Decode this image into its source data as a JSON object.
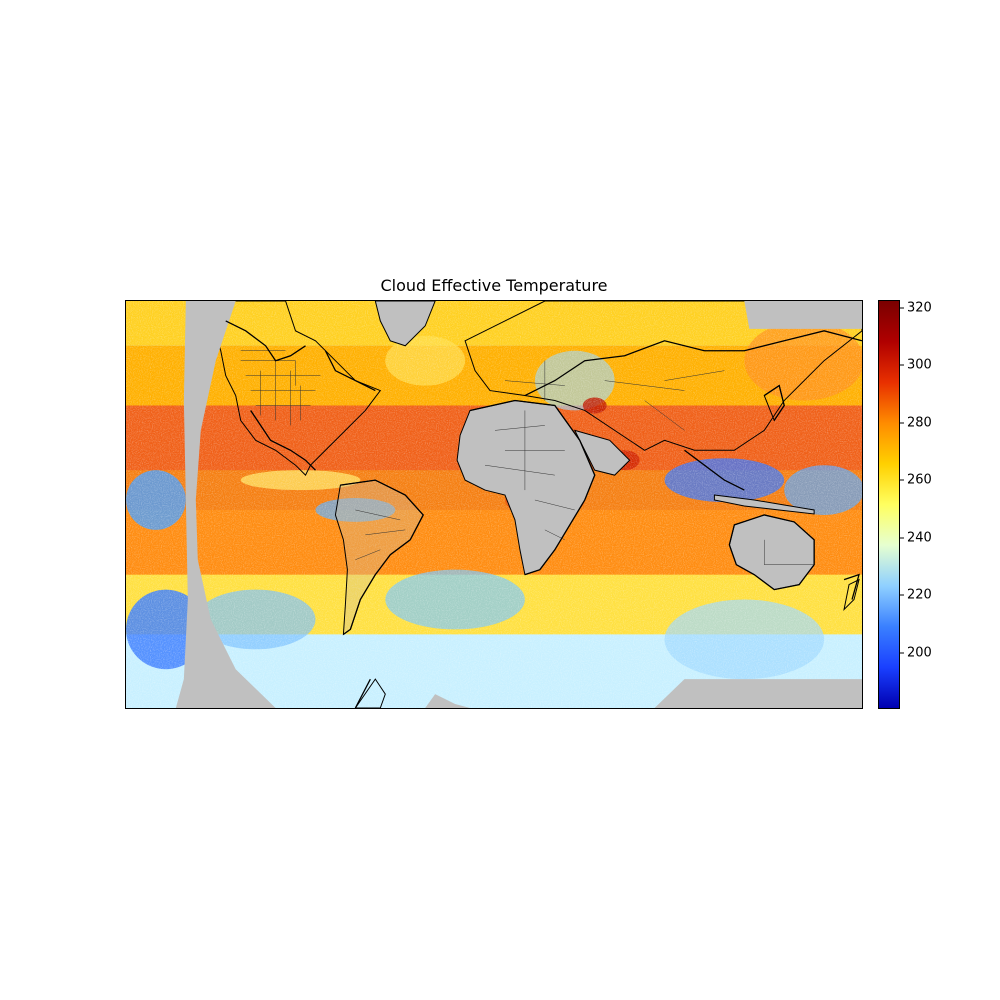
{
  "title": "Cloud Effective Temperature",
  "colorbar": {
    "min": 181,
    "max": 322,
    "ticks": [
      "320",
      "300",
      "280",
      "260",
      "240",
      "220",
      "200"
    ],
    "colormap": "jet",
    "colors": [
      "#0000b0",
      "#1a40ff",
      "#3a80ff",
      "#8fd0ff",
      "#e6ffd0",
      "#ffff60",
      "#ffd000",
      "#ff8c00",
      "#e83000",
      "#b00000",
      "#7a0000"
    ]
  },
  "map": {
    "projection": "plate-carree",
    "missing_color": "#c0c0c0",
    "features": [
      "coastlines",
      "country-borders",
      "us-state-borders"
    ]
  }
}
